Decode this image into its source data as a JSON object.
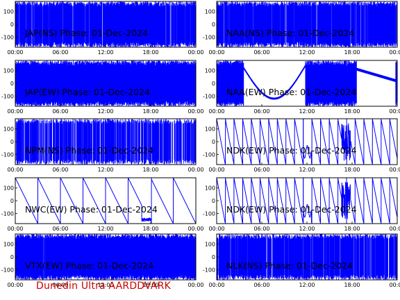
{
  "footer_text": "Dunedin Ultra AARDDVARK",
  "colors": {
    "trace": "#0000ff",
    "frame": "#000000",
    "footer": "#cc0000",
    "background": "#ffffff"
  },
  "chart_data": [
    {
      "type": "line",
      "title": "JAP(NS) Phase: 01-Dec-2024",
      "x_ticks": [
        "00:00",
        "06:00",
        "12:00",
        "18:00",
        "00:00"
      ],
      "y_ticks": [
        100,
        0,
        -100
      ],
      "ylim": [
        -180,
        180
      ],
      "xlim_hours": [
        0,
        24
      ],
      "pattern": "noise",
      "density": 0.82
    },
    {
      "type": "line",
      "title": "NAA(NS) Phase: 01-Dec-2024",
      "x_ticks": [
        "00:00",
        "06:00",
        "12:00",
        "18:00",
        "00:00"
      ],
      "y_ticks": [
        100,
        0,
        -100
      ],
      "ylim": [
        -180,
        180
      ],
      "xlim_hours": [
        0,
        24
      ],
      "pattern": "noise",
      "density": 0.78
    },
    {
      "type": "line",
      "title": "JAP(EW) Phase: 01-Dec-2024",
      "x_ticks": [
        "00:00",
        "06:00",
        "12:00",
        "18:00",
        "00:00"
      ],
      "y_ticks": [
        100,
        0,
        -100
      ],
      "ylim": [
        -180,
        180
      ],
      "xlim_hours": [
        0,
        24
      ],
      "pattern": "noise",
      "density": 0.97
    },
    {
      "type": "line",
      "title": "NAA(EW) Phase: 01-Dec-2024",
      "x_ticks": [
        "00:00",
        "06:00",
        "12:00",
        "18:00",
        "00:00"
      ],
      "y_ticks": [
        100,
        0,
        -100
      ],
      "ylim": [
        -180,
        180
      ],
      "xlim_hours": [
        0,
        24
      ],
      "pattern": "naa_ew",
      "density": 0.95
    },
    {
      "type": "line",
      "title": "NPM(NS) Phase: 01-Dec-2024",
      "x_ticks": [
        "00:00",
        "06:00",
        "12:00",
        "18:00",
        "00:00"
      ],
      "y_ticks": [
        100,
        0,
        -100
      ],
      "ylim": [
        -180,
        180
      ],
      "xlim_hours": [
        0,
        24
      ],
      "pattern": "noise",
      "density": 0.6
    },
    {
      "type": "line",
      "title": "NDK(EW) Phase: 01-Dec-2024",
      "x_ticks": [
        "00:00",
        "06:00",
        "12:00",
        "18:00",
        "00:00"
      ],
      "y_ticks": [
        100,
        0,
        -100
      ],
      "ylim": [
        -180,
        180
      ],
      "xlim_hours": [
        0,
        24
      ],
      "pattern": "sawtooth",
      "period_hours": 1.15,
      "slope": "down"
    },
    {
      "type": "line",
      "title": "NWC(EW) Phase: 01-Dec-2024",
      "x_ticks": [
        "00:00",
        "06:00",
        "12:00",
        "18:00",
        "00:00"
      ],
      "y_ticks": [
        100,
        0,
        -100
      ],
      "ylim": [
        -180,
        180
      ],
      "xlim_hours": [
        0,
        24
      ],
      "pattern": "sawtooth",
      "period_hours": 3.0,
      "slope": "down"
    },
    {
      "type": "line",
      "title": "NDK(EW) Phase: 01-Dec-2024",
      "x_ticks": [
        "00:00",
        "06:00",
        "12:00",
        "18:00",
        "00:00"
      ],
      "y_ticks": [
        100,
        0,
        -100
      ],
      "ylim": [
        -180,
        180
      ],
      "xlim_hours": [
        0,
        24
      ],
      "pattern": "sawtooth",
      "period_hours": 1.15,
      "slope": "down"
    },
    {
      "type": "line",
      "title": "VTX(EW) Phase: 01-Dec-2024",
      "x_ticks": [
        "00:00",
        "06:00",
        "12:00",
        "18:00",
        "00:00"
      ],
      "y_ticks": [
        100,
        0,
        -100
      ],
      "ylim": [
        -180,
        180
      ],
      "xlim_hours": [
        0,
        24
      ],
      "pattern": "noise",
      "density": 0.95
    },
    {
      "type": "line",
      "title": "NLK(NS) Phase: 01-Dec-2024",
      "x_ticks": [
        "00:00",
        "06:00",
        "12:00",
        "18:00",
        "00:00"
      ],
      "y_ticks": [
        100,
        0,
        -100
      ],
      "ylim": [
        -180,
        180
      ],
      "xlim_hours": [
        0,
        24
      ],
      "pattern": "noise",
      "density": 0.7
    }
  ]
}
